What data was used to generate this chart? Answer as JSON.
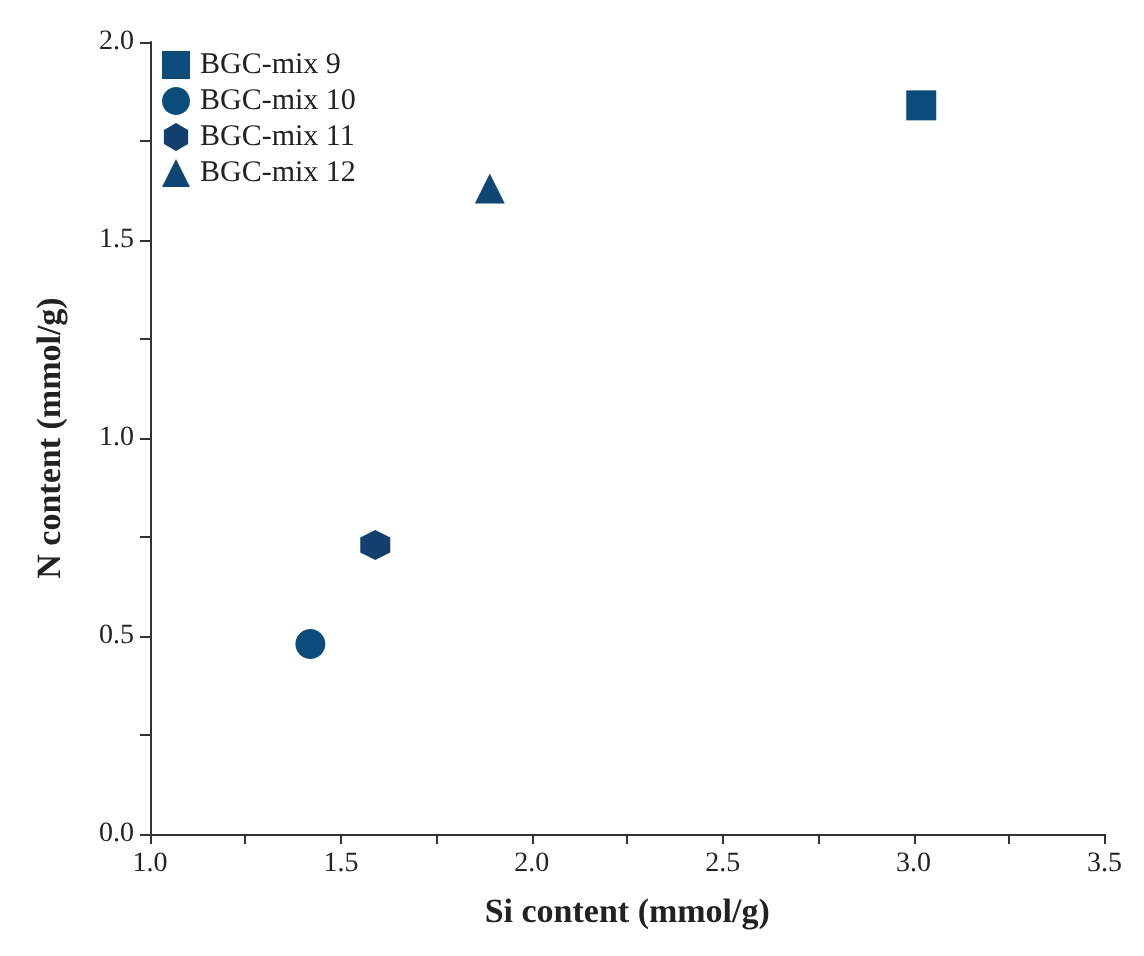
{
  "chart_data": {
    "type": "scatter",
    "xlabel": "Si content (mmol/g)",
    "ylabel": "N content (mmol/g)",
    "series": [
      {
        "name": "BGC-mix 9",
        "color": "#0b4c7a",
        "marker": "square",
        "x": [
          3.02
        ],
        "values": [
          1.84
        ]
      },
      {
        "name": "BGC-mix 10",
        "color": "#0b4c7a",
        "marker": "circle",
        "x": [
          1.42
        ],
        "values": [
          0.48
        ]
      },
      {
        "name": "BGC-mix 11",
        "color": "#123f6e",
        "x": [
          1.59
        ],
        "values": [
          0.73
        ]
      },
      {
        "name": "BGC-mix 12",
        "color": "#0f4673",
        "marker": "triangle",
        "x": [
          1.89
        ],
        "values": [
          1.63
        ]
      }
    ],
    "xlim": [
      1.0,
      3.5
    ],
    "xticks": [
      {
        "value": 1,
        "label": "1.0"
      },
      {
        "value": 1.25,
        "label": null
      },
      {
        "value": 1.5,
        "label": "1.5"
      },
      {
        "value": 1.75,
        "label": null
      },
      {
        "value": 2,
        "label": "2.0"
      },
      {
        "value": 2.25,
        "label": null
      },
      {
        "value": 2.5,
        "label": "2.5"
      },
      {
        "value": 2.75,
        "label": null
      },
      {
        "value": 3,
        "label": "3.0"
      },
      {
        "value": 3.25,
        "label": null
      },
      {
        "value": 3.5,
        "label": "3.5"
      }
    ],
    "ylim": [
      0.0,
      2.0
    ],
    "yticks": [
      {
        "value": 0,
        "label": "0.0"
      },
      {
        "value": 0.25,
        "label": null
      },
      {
        "value": 0.5,
        "label": "0.5"
      },
      {
        "value": 0.75,
        "label": null
      },
      {
        "value": 1,
        "label": "1.0"
      },
      {
        "value": 1.25,
        "label": null
      },
      {
        "value": 1.5,
        "label": "1.5"
      },
      {
        "value": 1.75,
        "label": null
      },
      {
        "value": 2,
        "label": "2.0"
      }
    ],
    "grid": false,
    "legend": "top left"
  }
}
